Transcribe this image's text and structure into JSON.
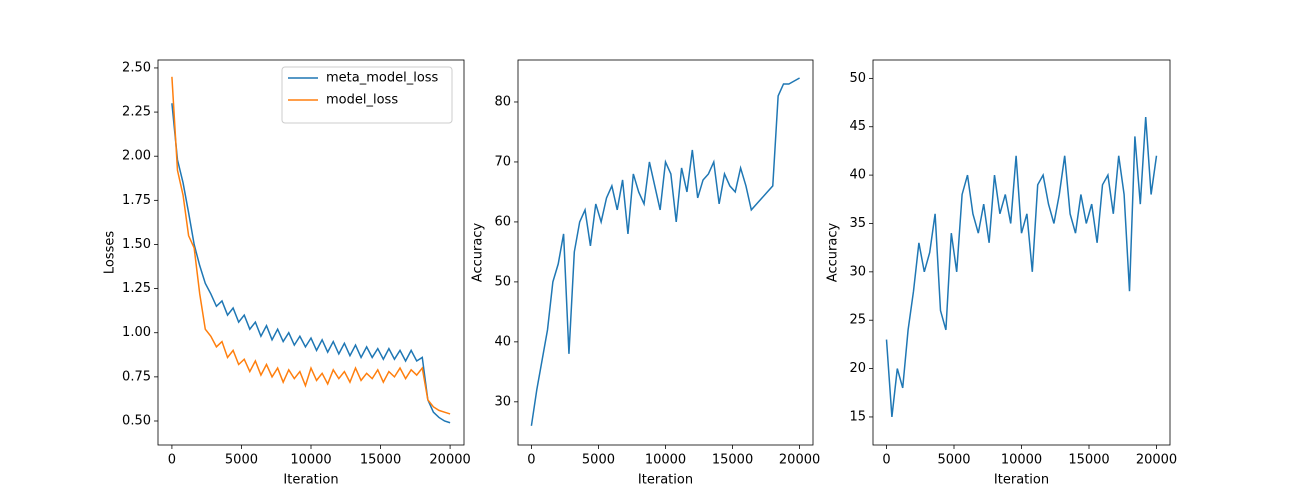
{
  "chart_data": [
    {
      "type": "line",
      "xlabel": "Iteration",
      "ylabel": "Losses",
      "legend": "upper right",
      "xlim": [
        -1000,
        21000
      ],
      "ylim": [
        0.364,
        2.545
      ],
      "xticks": [
        0,
        5000,
        10000,
        15000,
        20000
      ],
      "yticks": [
        {
          "value": 0.5,
          "label": "0.50"
        },
        {
          "value": 0.75,
          "label": "0.75"
        },
        {
          "value": 1.0,
          "label": "1.00"
        },
        {
          "value": 1.25,
          "label": "1.25"
        },
        {
          "value": 1.5,
          "label": "1.50"
        },
        {
          "value": 1.75,
          "label": "1.75"
        },
        {
          "value": 2.0,
          "label": "2.00"
        },
        {
          "value": 2.25,
          "label": "2.25"
        },
        {
          "value": 2.5,
          "label": "2.50"
        }
      ],
      "x": [
        0,
        400,
        800,
        1200,
        1600,
        2000,
        2400,
        2800,
        3200,
        3600,
        4000,
        4400,
        4800,
        5200,
        5600,
        6000,
        6400,
        6800,
        7200,
        7600,
        8000,
        8400,
        8800,
        9200,
        9600,
        10000,
        10400,
        10800,
        11200,
        11600,
        12000,
        12400,
        12800,
        13200,
        13600,
        14000,
        14400,
        14800,
        15200,
        15600,
        16000,
        16400,
        16800,
        17200,
        17600,
        18000,
        18400,
        18800,
        19200,
        19600,
        20000
      ],
      "series": [
        {
          "name": "meta_model_loss",
          "color": "#1f77b4",
          "values": [
            2.3,
            1.98,
            1.85,
            1.68,
            1.5,
            1.38,
            1.28,
            1.22,
            1.15,
            1.18,
            1.1,
            1.14,
            1.06,
            1.1,
            1.02,
            1.06,
            0.98,
            1.04,
            0.96,
            1.02,
            0.95,
            1.0,
            0.93,
            0.98,
            0.92,
            0.97,
            0.9,
            0.96,
            0.89,
            0.95,
            0.88,
            0.94,
            0.87,
            0.93,
            0.86,
            0.92,
            0.86,
            0.91,
            0.85,
            0.91,
            0.85,
            0.9,
            0.84,
            0.9,
            0.84,
            0.86,
            0.62,
            0.55,
            0.52,
            0.5,
            0.49
          ]
        },
        {
          "name": "model_loss",
          "color": "#ff7f0e",
          "values": [
            2.45,
            1.92,
            1.78,
            1.55,
            1.48,
            1.22,
            1.02,
            0.98,
            0.92,
            0.95,
            0.86,
            0.9,
            0.82,
            0.85,
            0.78,
            0.84,
            0.76,
            0.82,
            0.75,
            0.8,
            0.72,
            0.79,
            0.74,
            0.78,
            0.7,
            0.8,
            0.73,
            0.77,
            0.71,
            0.79,
            0.74,
            0.78,
            0.72,
            0.8,
            0.73,
            0.77,
            0.74,
            0.79,
            0.72,
            0.78,
            0.75,
            0.8,
            0.74,
            0.79,
            0.76,
            0.8,
            0.62,
            0.58,
            0.56,
            0.55,
            0.54
          ]
        }
      ]
    },
    {
      "type": "line",
      "xlabel": "Iteration",
      "ylabel": "Accuracy",
      "xlim": [
        -1000,
        21000
      ],
      "ylim": [
        22.8,
        87.0
      ],
      "xticks": [
        0,
        5000,
        10000,
        15000,
        20000
      ],
      "yticks": [
        30,
        40,
        50,
        60,
        70,
        80
      ],
      "x": [
        0,
        400,
        800,
        1200,
        1600,
        2000,
        2400,
        2800,
        3200,
        3600,
        4000,
        4400,
        4800,
        5200,
        5600,
        6000,
        6400,
        6800,
        7200,
        7600,
        8000,
        8400,
        8800,
        9200,
        9600,
        10000,
        10400,
        10800,
        11200,
        11600,
        12000,
        12400,
        12800,
        13200,
        13600,
        14000,
        14400,
        14800,
        15200,
        15600,
        16000,
        16400,
        16800,
        17200,
        17600,
        18000,
        18400,
        18800,
        19200,
        19600,
        20000
      ],
      "series": [
        {
          "color": "#1f77b4",
          "values": [
            26,
            32,
            37,
            42,
            50,
            53,
            58,
            38,
            55,
            60,
            62,
            56,
            63,
            60,
            64,
            66,
            62,
            67,
            58,
            68,
            65,
            63,
            70,
            66,
            62,
            70,
            68,
            60,
            69,
            65,
            72,
            64,
            67,
            68,
            70,
            63,
            68,
            66,
            65,
            69,
            66,
            62,
            63,
            64,
            65,
            66,
            81,
            83,
            83,
            83.5,
            84
          ]
        }
      ]
    },
    {
      "type": "line",
      "xlabel": "Iteration",
      "ylabel": "Accuracy",
      "xlim": [
        -1000,
        21000
      ],
      "ylim": [
        12.1,
        51.9
      ],
      "xticks": [
        0,
        5000,
        10000,
        15000,
        20000
      ],
      "yticks": [
        15,
        20,
        25,
        30,
        35,
        40,
        45,
        50
      ],
      "x": [
        0,
        400,
        800,
        1200,
        1600,
        2000,
        2400,
        2800,
        3200,
        3600,
        4000,
        4400,
        4800,
        5200,
        5600,
        6000,
        6400,
        6800,
        7200,
        7600,
        8000,
        8400,
        8800,
        9200,
        9600,
        10000,
        10400,
        10800,
        11200,
        11600,
        12000,
        12400,
        12800,
        13200,
        13600,
        14000,
        14400,
        14800,
        15200,
        15600,
        16000,
        16400,
        16800,
        17200,
        17600,
        18000,
        18400,
        18800,
        19200,
        19600,
        20000
      ],
      "series": [
        {
          "color": "#1f77b4",
          "values": [
            23,
            15,
            20,
            18,
            24,
            28,
            33,
            30,
            32,
            36,
            26,
            24,
            34,
            30,
            38,
            40,
            36,
            34,
            37,
            33,
            40,
            36,
            38,
            35,
            42,
            34,
            36,
            30,
            39,
            40,
            37,
            35,
            38,
            42,
            36,
            34,
            38,
            35,
            37,
            33,
            39,
            40,
            36,
            42,
            38,
            28,
            44,
            37,
            46,
            38,
            42
          ]
        }
      ]
    }
  ]
}
